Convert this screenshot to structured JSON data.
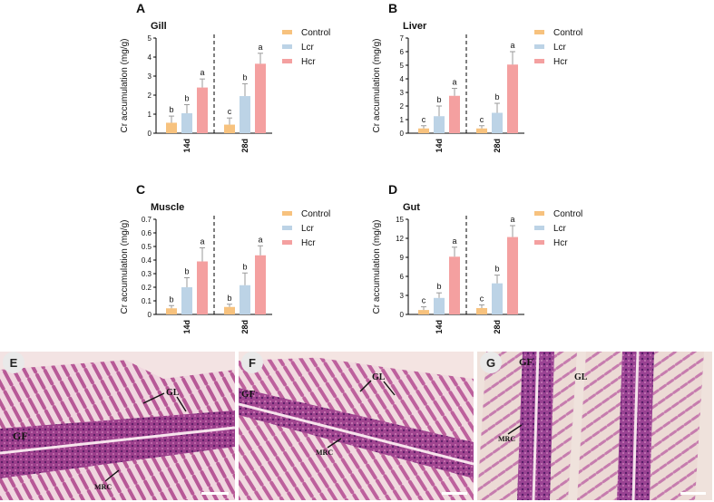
{
  "chart_data": [
    {
      "panel": "A",
      "type": "bar",
      "title": "Gill",
      "ylabel": "Cr accumulation (mg/g)",
      "ylim": [
        0,
        5
      ],
      "yticks": [
        0,
        1,
        2,
        3,
        4,
        5
      ],
      "groups": [
        "14d",
        "28d"
      ],
      "legend": [
        "Control",
        "Lcr",
        "Hcr"
      ],
      "series": [
        {
          "name": "Control",
          "values": [
            0.55,
            0.45
          ],
          "errors": [
            0.35,
            0.35
          ],
          "letters": [
            "b",
            "c"
          ]
        },
        {
          "name": "Lcr",
          "values": [
            1.05,
            1.95
          ],
          "errors": [
            0.45,
            0.65
          ],
          "letters": [
            "b",
            "b"
          ]
        },
        {
          "name": "Hcr",
          "values": [
            2.4,
            3.65
          ],
          "errors": [
            0.45,
            0.55
          ],
          "letters": [
            "a",
            "a"
          ]
        }
      ]
    },
    {
      "panel": "B",
      "type": "bar",
      "title": "Liver",
      "ylabel": "Cr accumulation (mg/g)",
      "ylim": [
        0,
        7
      ],
      "yticks": [
        0,
        1,
        2,
        3,
        4,
        5,
        6,
        7
      ],
      "groups": [
        "14d",
        "28d"
      ],
      "legend": [
        "Control",
        "Lcr",
        "Hcr"
      ],
      "series": [
        {
          "name": "Control",
          "values": [
            0.35,
            0.35
          ],
          "errors": [
            0.2,
            0.2
          ],
          "letters": [
            "c",
            "c"
          ]
        },
        {
          "name": "Lcr",
          "values": [
            1.25,
            1.5
          ],
          "errors": [
            0.75,
            0.7
          ],
          "letters": [
            "b",
            "b"
          ]
        },
        {
          "name": "Hcr",
          "values": [
            2.75,
            5.05
          ],
          "errors": [
            0.55,
            0.95
          ],
          "letters": [
            "a",
            "a"
          ]
        }
      ]
    },
    {
      "panel": "C",
      "type": "bar",
      "title": "Muscle",
      "ylabel": "Cr accumulation (mg/g)",
      "ylim": [
        0,
        0.7
      ],
      "yticks": [
        0,
        0.1,
        0.2,
        0.3,
        0.4,
        0.5,
        0.6,
        0.7
      ],
      "groups": [
        "14d",
        "28d"
      ],
      "legend": [
        "Control",
        "Lcr",
        "Hcr"
      ],
      "series": [
        {
          "name": "Control",
          "values": [
            0.045,
            0.055
          ],
          "errors": [
            0.02,
            0.02
          ],
          "letters": [
            "b",
            "b"
          ]
        },
        {
          "name": "Lcr",
          "values": [
            0.2,
            0.215
          ],
          "errors": [
            0.07,
            0.09
          ],
          "letters": [
            "b",
            "b"
          ]
        },
        {
          "name": "Hcr",
          "values": [
            0.39,
            0.435
          ],
          "errors": [
            0.1,
            0.07
          ],
          "letters": [
            "a",
            "a"
          ]
        }
      ]
    },
    {
      "panel": "D",
      "type": "bar",
      "title": "Gut",
      "ylabel": "Cr accumulation (mg/g)",
      "ylim": [
        0,
        15
      ],
      "yticks": [
        0,
        3,
        6,
        9,
        12,
        15
      ],
      "groups": [
        "14d",
        "28d"
      ],
      "legend": [
        "Control",
        "Lcr",
        "Hcr"
      ],
      "series": [
        {
          "name": "Control",
          "values": [
            0.7,
            1.0
          ],
          "errors": [
            0.5,
            0.5
          ],
          "letters": [
            "c",
            "c"
          ]
        },
        {
          "name": "Lcr",
          "values": [
            2.6,
            4.9
          ],
          "errors": [
            0.8,
            1.3
          ],
          "letters": [
            "b",
            "b"
          ]
        },
        {
          "name": "Hcr",
          "values": [
            9.1,
            12.2
          ],
          "errors": [
            1.5,
            1.8
          ],
          "letters": [
            "a",
            "a"
          ]
        }
      ]
    }
  ],
  "colors": {
    "Control": "#F7C27E",
    "Lcr": "#BCD3E6",
    "Hcr": "#F4A0A0"
  },
  "micrographs": [
    {
      "panel": "E",
      "labels": {
        "gf": "GF",
        "gl": "GL",
        "mrc": "MRC"
      }
    },
    {
      "panel": "F",
      "labels": {
        "gf": "GF",
        "gl": "GL",
        "mrc": "MRC"
      }
    },
    {
      "panel": "G",
      "labels": {
        "gf": "GF",
        "gl": "GL",
        "mrc": "MRC"
      }
    }
  ]
}
